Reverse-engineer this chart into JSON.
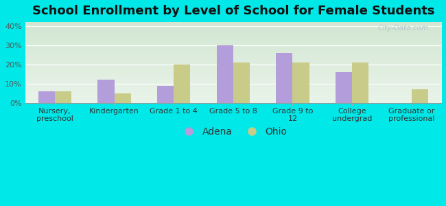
{
  "title": "School Enrollment by Level of School for Female Students",
  "categories": [
    "Nursery,\npreschool",
    "Kindergarten",
    "Grade 1 to 4",
    "Grade 5 to 8",
    "Grade 9 to\n12",
    "College\nundergrad",
    "Graduate or\nprofessional"
  ],
  "adena": [
    6,
    12,
    9,
    30,
    26,
    16,
    0
  ],
  "ohio": [
    6,
    5,
    20,
    21,
    21,
    21,
    7
  ],
  "adena_color": "#b39ddb",
  "ohio_color": "#c8cc88",
  "background_top": "#eaf4f4",
  "background_bottom": "#d8eedc",
  "background_fig": "#00e8e8",
  "ylim": [
    0,
    42
  ],
  "yticks": [
    0,
    10,
    20,
    30,
    40
  ],
  "ytick_labels": [
    "0%",
    "10%",
    "20%",
    "30%",
    "40%"
  ],
  "legend_labels": [
    "Adena",
    "Ohio"
  ],
  "watermark": "City-Data.com",
  "bar_width": 0.28,
  "title_fontsize": 13,
  "tick_fontsize": 8,
  "legend_fontsize": 10
}
